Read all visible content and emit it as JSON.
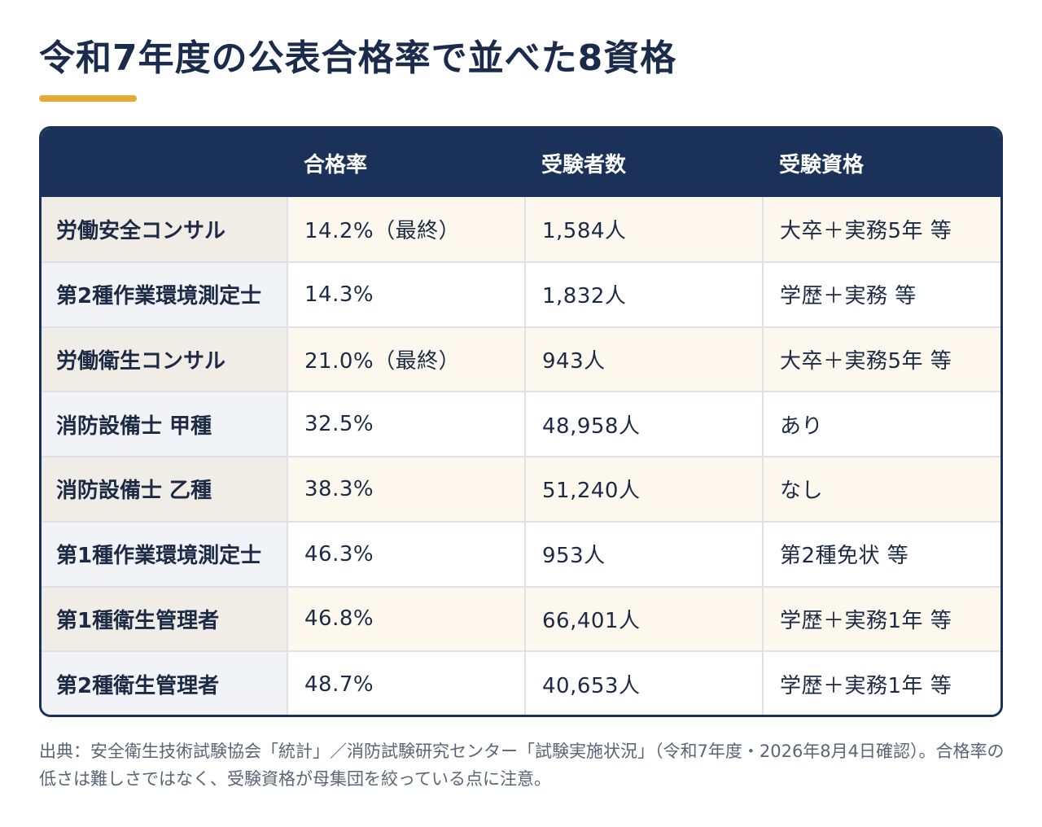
{
  "title": "令和7年度の公表合格率で並べた8資格",
  "accent_color": "#e6a935",
  "header_color": "#1a3159",
  "table": {
    "headers": [
      "",
      "合格率",
      "受験者数",
      "受験資格"
    ],
    "rows": [
      {
        "name": "労働安全コンサル",
        "pass_rate": "14.2%（最終）",
        "applicants": "1,584人",
        "eligibility": "大卒＋実務5年 等"
      },
      {
        "name": "第2種作業環境測定士",
        "pass_rate": "14.3%",
        "applicants": "1,832人",
        "eligibility": "学歴＋実務 等"
      },
      {
        "name": "労働衛生コンサル",
        "pass_rate": "21.0%（最終）",
        "applicants": "943人",
        "eligibility": "大卒＋実務5年 等"
      },
      {
        "name": "消防設備士 甲種",
        "pass_rate": "32.5%",
        "applicants": "48,958人",
        "eligibility": "あり"
      },
      {
        "name": "消防設備士 乙種",
        "pass_rate": "38.3%",
        "applicants": "51,240人",
        "eligibility": "なし"
      },
      {
        "name": "第1種作業環境測定士",
        "pass_rate": "46.3%",
        "applicants": "953人",
        "eligibility": "第2種免状 等"
      },
      {
        "name": "第1種衛生管理者",
        "pass_rate": "46.8%",
        "applicants": "66,401人",
        "eligibility": "学歴＋実務1年 等"
      },
      {
        "name": "第2種衛生管理者",
        "pass_rate": "48.7%",
        "applicants": "40,653人",
        "eligibility": "学歴＋実務1年 等"
      }
    ]
  },
  "footnote": "出典：安全衛生技術試験協会「統計」／消防試験研究センター「試験実施状況」（令和7年度・2026年8月4日確認）。合格率の低さは難しさではなく、受験資格が母集団を絞っている点に注意。"
}
